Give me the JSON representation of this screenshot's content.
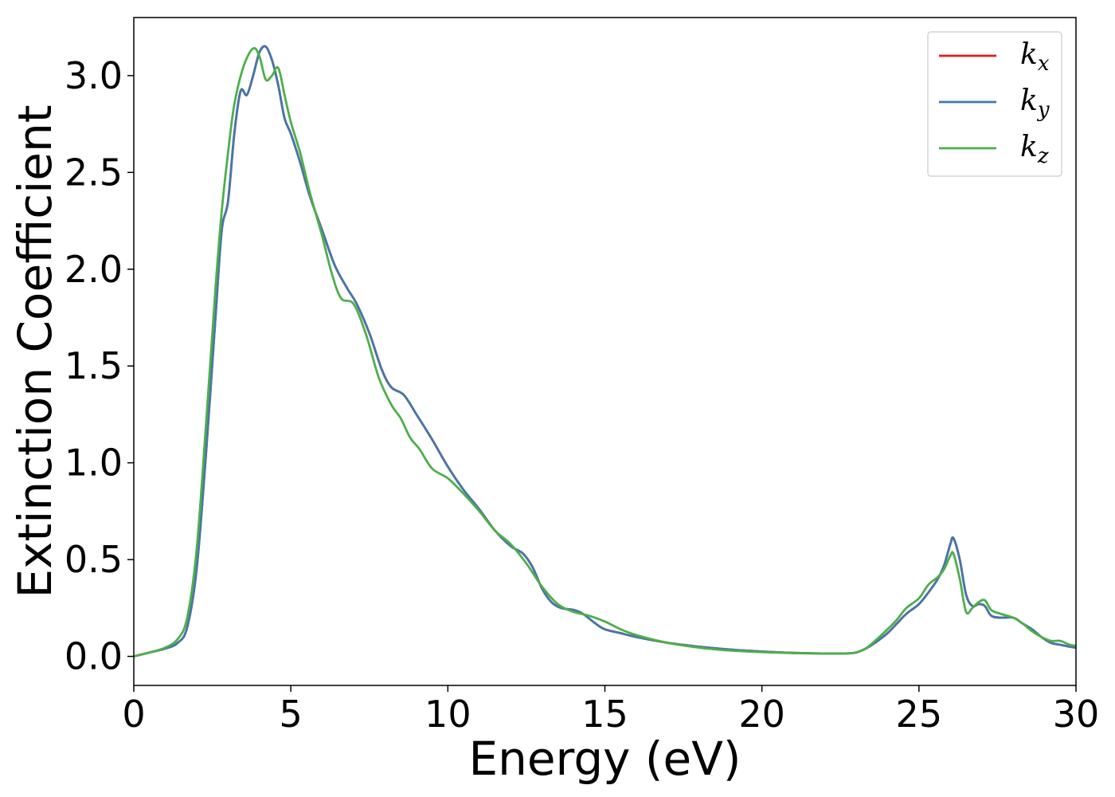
{
  "chart_data": {
    "type": "line",
    "title": "",
    "xlabel": "Energy (eV)",
    "ylabel": "Extinction Coefficient",
    "xlim": [
      0,
      30
    ],
    "ylim": [
      -0.15,
      3.3
    ],
    "xticks": [
      0,
      5,
      10,
      15,
      20,
      25,
      30
    ],
    "xtick_labels": [
      "0",
      "5",
      "10",
      "15",
      "20",
      "25",
      "30"
    ],
    "yticks": [
      0.0,
      0.5,
      1.0,
      1.5,
      2.0,
      2.5,
      3.0
    ],
    "ytick_labels": [
      "0.0",
      "0.5",
      "1.0",
      "1.5",
      "2.0",
      "2.5",
      "3.0"
    ],
    "grid": false,
    "legend_position": "top-right",
    "series": [
      {
        "name": "k",
        "subscript": "x",
        "color": "#e41a1c",
        "x": [
          0,
          0.5,
          1.0,
          1.4,
          1.7,
          2.0,
          2.3,
          2.6,
          2.8,
          3.0,
          3.2,
          3.4,
          3.6,
          3.8,
          4.0,
          4.2,
          4.4,
          4.6,
          4.8,
          5.0,
          5.3,
          5.6,
          6.0,
          6.4,
          6.8,
          7.1,
          7.5,
          7.9,
          8.2,
          8.6,
          9.0,
          9.5,
          10.0,
          10.5,
          11.0,
          11.5,
          12.0,
          12.4,
          12.7,
          13.0,
          13.3,
          13.6,
          14.0,
          14.3,
          14.7,
          15.0,
          15.5,
          16.0,
          17.0,
          18.0,
          19.0,
          20.0,
          21.0,
          22.0,
          22.6,
          23.0,
          23.3,
          23.6,
          24.0,
          24.3,
          24.6,
          25.0,
          25.3,
          25.6,
          25.8,
          26.0,
          26.1,
          26.3,
          26.5,
          26.7,
          26.9,
          27.1,
          27.3,
          27.6,
          28.0,
          28.3,
          28.6,
          28.9,
          29.2,
          29.5,
          29.8,
          30.0
        ],
        "y": [
          0.0,
          0.02,
          0.04,
          0.07,
          0.15,
          0.45,
          1.05,
          1.75,
          2.2,
          2.35,
          2.7,
          2.92,
          2.9,
          3.0,
          3.12,
          3.15,
          3.08,
          2.95,
          2.78,
          2.7,
          2.55,
          2.38,
          2.2,
          2.02,
          1.9,
          1.82,
          1.67,
          1.48,
          1.39,
          1.35,
          1.25,
          1.12,
          0.98,
          0.86,
          0.76,
          0.65,
          0.57,
          0.53,
          0.46,
          0.35,
          0.28,
          0.25,
          0.24,
          0.22,
          0.17,
          0.14,
          0.12,
          0.1,
          0.07,
          0.05,
          0.035,
          0.025,
          0.018,
          0.015,
          0.015,
          0.02,
          0.04,
          0.07,
          0.12,
          0.17,
          0.22,
          0.27,
          0.33,
          0.4,
          0.47,
          0.58,
          0.61,
          0.5,
          0.32,
          0.26,
          0.27,
          0.26,
          0.21,
          0.2,
          0.2,
          0.17,
          0.14,
          0.1,
          0.07,
          0.06,
          0.05,
          0.045
        ]
      },
      {
        "name": "k",
        "subscript": "y",
        "color": "#4477aa",
        "x": [
          0,
          0.5,
          1.0,
          1.4,
          1.7,
          2.0,
          2.3,
          2.6,
          2.8,
          3.0,
          3.2,
          3.4,
          3.6,
          3.8,
          4.0,
          4.2,
          4.4,
          4.6,
          4.8,
          5.0,
          5.3,
          5.6,
          6.0,
          6.4,
          6.8,
          7.1,
          7.5,
          7.9,
          8.2,
          8.6,
          9.0,
          9.5,
          10.0,
          10.5,
          11.0,
          11.5,
          12.0,
          12.4,
          12.7,
          13.0,
          13.3,
          13.6,
          14.0,
          14.3,
          14.7,
          15.0,
          15.5,
          16.0,
          17.0,
          18.0,
          19.0,
          20.0,
          21.0,
          22.0,
          22.6,
          23.0,
          23.3,
          23.6,
          24.0,
          24.3,
          24.6,
          25.0,
          25.3,
          25.6,
          25.8,
          26.0,
          26.1,
          26.3,
          26.5,
          26.7,
          26.9,
          27.1,
          27.3,
          27.6,
          28.0,
          28.3,
          28.6,
          28.9,
          29.2,
          29.5,
          29.8,
          30.0
        ],
        "y": [
          0.0,
          0.02,
          0.04,
          0.07,
          0.15,
          0.45,
          1.05,
          1.75,
          2.2,
          2.35,
          2.7,
          2.92,
          2.9,
          3.0,
          3.12,
          3.15,
          3.08,
          2.95,
          2.78,
          2.7,
          2.55,
          2.38,
          2.2,
          2.02,
          1.9,
          1.82,
          1.67,
          1.48,
          1.39,
          1.35,
          1.25,
          1.12,
          0.98,
          0.86,
          0.76,
          0.65,
          0.57,
          0.53,
          0.46,
          0.35,
          0.28,
          0.25,
          0.24,
          0.22,
          0.17,
          0.14,
          0.12,
          0.1,
          0.07,
          0.05,
          0.035,
          0.025,
          0.018,
          0.015,
          0.015,
          0.02,
          0.04,
          0.07,
          0.12,
          0.17,
          0.22,
          0.27,
          0.33,
          0.4,
          0.47,
          0.58,
          0.61,
          0.5,
          0.32,
          0.26,
          0.27,
          0.26,
          0.21,
          0.2,
          0.2,
          0.17,
          0.14,
          0.1,
          0.07,
          0.06,
          0.05,
          0.045
        ]
      },
      {
        "name": "k",
        "subscript": "z",
        "color": "#4daf4a",
        "x": [
          0,
          0.5,
          1.0,
          1.4,
          1.7,
          2.0,
          2.3,
          2.6,
          2.8,
          3.0,
          3.2,
          3.5,
          3.8,
          4.0,
          4.2,
          4.4,
          4.6,
          4.8,
          5.0,
          5.3,
          5.6,
          6.0,
          6.3,
          6.6,
          7.0,
          7.4,
          7.8,
          8.2,
          8.5,
          8.8,
          9.1,
          9.5,
          10.0,
          10.5,
          11.0,
          11.5,
          12.0,
          12.5,
          13.0,
          13.5,
          14.0,
          14.5,
          15.0,
          15.5,
          16.0,
          17.0,
          18.0,
          19.0,
          20.0,
          21.0,
          22.0,
          22.6,
          23.0,
          23.3,
          23.6,
          24.0,
          24.3,
          24.6,
          25.0,
          25.3,
          25.6,
          25.8,
          26.0,
          26.1,
          26.3,
          26.5,
          26.7,
          26.9,
          27.1,
          27.3,
          27.6,
          28.0,
          28.3,
          28.6,
          28.9,
          29.2,
          29.5,
          29.8,
          30.0
        ],
        "y": [
          0.0,
          0.02,
          0.045,
          0.09,
          0.2,
          0.55,
          1.2,
          1.9,
          2.3,
          2.6,
          2.85,
          3.05,
          3.14,
          3.1,
          2.98,
          3.0,
          3.04,
          2.9,
          2.76,
          2.6,
          2.4,
          2.17,
          1.98,
          1.85,
          1.82,
          1.66,
          1.44,
          1.3,
          1.23,
          1.13,
          1.07,
          0.97,
          0.92,
          0.84,
          0.75,
          0.65,
          0.58,
          0.48,
          0.36,
          0.27,
          0.23,
          0.21,
          0.18,
          0.14,
          0.11,
          0.07,
          0.045,
          0.03,
          0.022,
          0.017,
          0.015,
          0.015,
          0.02,
          0.04,
          0.08,
          0.14,
          0.19,
          0.25,
          0.3,
          0.37,
          0.41,
          0.45,
          0.52,
          0.53,
          0.4,
          0.23,
          0.25,
          0.28,
          0.29,
          0.24,
          0.22,
          0.2,
          0.17,
          0.13,
          0.1,
          0.08,
          0.08,
          0.06,
          0.055
        ]
      }
    ]
  }
}
